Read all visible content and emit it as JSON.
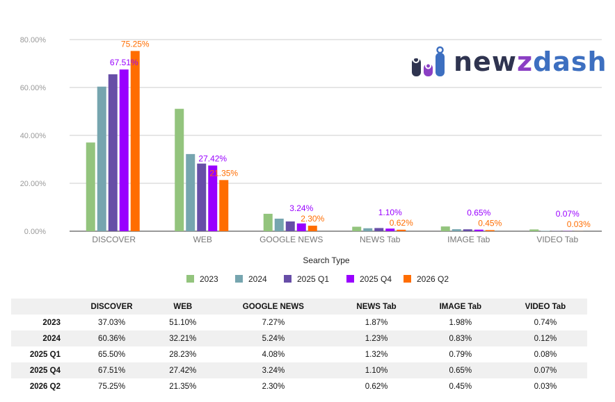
{
  "chart_data": {
    "type": "bar",
    "xlabel": "Search Type",
    "ylabel": "",
    "ylim": [
      0,
      80
    ],
    "yticks": [
      "0.00%",
      "20.00%",
      "40.00%",
      "60.00%",
      "80.00%"
    ],
    "grid": true,
    "legend_position": "bottom",
    "categories": [
      "DISCOVER",
      "WEB",
      "GOOGLE NEWS",
      "NEWS Tab",
      "IMAGE Tab",
      "VIDEO Tab"
    ],
    "series": [
      {
        "name": "2023",
        "color": "#93c47d",
        "values": [
          37.03,
          51.1,
          7.27,
          1.87,
          1.98,
          0.74
        ]
      },
      {
        "name": "2024",
        "color": "#76a5af",
        "values": [
          60.36,
          32.21,
          5.24,
          1.23,
          0.83,
          0.12
        ]
      },
      {
        "name": "2025 Q1",
        "color": "#674ea7",
        "values": [
          65.5,
          28.23,
          4.08,
          1.32,
          0.79,
          0.08
        ]
      },
      {
        "name": "2025 Q4",
        "color": "#9900ff",
        "values": [
          67.51,
          27.42,
          3.24,
          1.1,
          0.65,
          0.07
        ],
        "labels": true
      },
      {
        "name": "2026 Q2",
        "color": "#ff6d01",
        "values": [
          75.25,
          21.35,
          2.3,
          0.62,
          0.45,
          0.03
        ],
        "labels": true
      }
    ]
  },
  "logo": {
    "text_1": "new",
    "text_2": "z",
    "text_3": "dash"
  },
  "table": {
    "headers": [
      "",
      "DISCOVER",
      "WEB",
      "GOOGLE NEWS",
      "NEWS Tab",
      "IMAGE Tab",
      "VIDEO Tab"
    ],
    "rows": [
      [
        "2023",
        "37.03%",
        "51.10%",
        "7.27%",
        "1.87%",
        "1.98%",
        "0.74%"
      ],
      [
        "2024",
        "60.36%",
        "32.21%",
        "5.24%",
        "1.23%",
        "0.83%",
        "0.12%"
      ],
      [
        "2025 Q1",
        "65.50%",
        "28.23%",
        "4.08%",
        "1.32%",
        "0.79%",
        "0.08%"
      ],
      [
        "2025 Q4",
        "67.51%",
        "27.42%",
        "3.24%",
        "1.10%",
        "0.65%",
        "0.07%"
      ],
      [
        "2026 Q2",
        "75.25%",
        "21.35%",
        "2.30%",
        "0.62%",
        "0.45%",
        "0.03%"
      ]
    ]
  }
}
